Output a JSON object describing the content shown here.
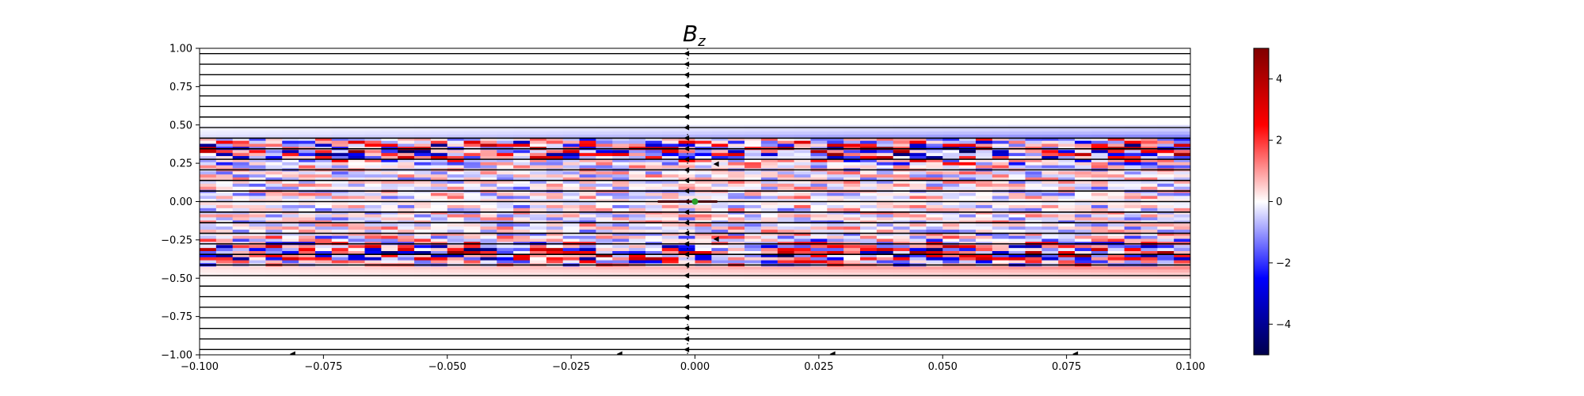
{
  "chart_data": {
    "type": "heatmap",
    "title": "B",
    "title_subscript": "z",
    "xlabel": "",
    "ylabel": "",
    "xlim": [
      -0.1,
      0.1
    ],
    "ylim": [
      -1.0,
      1.0
    ],
    "x_ticks": [
      -0.1,
      -0.075,
      -0.05,
      -0.025,
      0.0,
      0.025,
      0.05,
      0.075,
      0.1
    ],
    "x_tick_labels": [
      "−0.100",
      "−0.075",
      "−0.050",
      "−0.025",
      "0.000",
      "0.025",
      "0.050",
      "0.075",
      "0.100"
    ],
    "y_ticks": [
      -1.0,
      -0.75,
      -0.5,
      -0.25,
      0.0,
      0.25,
      0.5,
      0.75,
      1.0
    ],
    "y_tick_labels": [
      "−1.00",
      "−0.75",
      "−0.50",
      "−0.25",
      "0.00",
      "0.25",
      "0.50",
      "0.75",
      "1.00"
    ],
    "colorbar": {
      "colormap": "seismic",
      "range": [
        -5,
        5
      ],
      "ticks": [
        -4,
        -2,
        0,
        2,
        4
      ],
      "tick_labels": [
        "−4",
        "−2",
        "0",
        "2",
        "4"
      ]
    },
    "streamlines": {
      "direction": "leftward",
      "color": "#000000"
    },
    "marker": {
      "x": 0.0,
      "y": 0.0,
      "color": "#2ca02c"
    },
    "field_description": "Oscillating red/blue Bz bands concentrated in |y| < 0.45; strongest near y ≈ ±0.35, near-zero (white) for |y| > 0.5"
  }
}
